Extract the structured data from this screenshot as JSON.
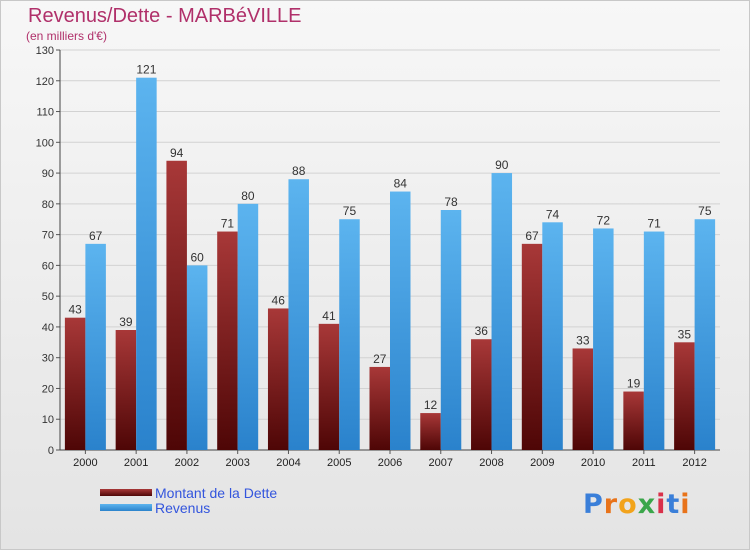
{
  "chart_data": {
    "type": "bar",
    "title": "Revenus/Dette - MARBéVILLE",
    "subtitle": "(en milliers d'€)",
    "categories": [
      "2000",
      "2001",
      "2002",
      "2003",
      "2004",
      "2005",
      "2006",
      "2007",
      "2008",
      "2009",
      "2010",
      "2011",
      "2012"
    ],
    "series": [
      {
        "name": "Montant de la Dette",
        "color": "#7a1a1a",
        "values": [
          43,
          39,
          94,
          71,
          46,
          41,
          27,
          12,
          36,
          67,
          33,
          19,
          35
        ]
      },
      {
        "name": "Revenus",
        "color": "#3d9be0",
        "values": [
          67,
          121,
          60,
          80,
          88,
          75,
          84,
          78,
          90,
          74,
          72,
          71,
          75
        ]
      }
    ],
    "ylim": [
      0,
      130
    ],
    "yticks": [
      0,
      10,
      20,
      30,
      40,
      50,
      60,
      70,
      80,
      90,
      100,
      110,
      120,
      130
    ],
    "grid": true,
    "legend_position": "bottom-left",
    "data_labels": true
  },
  "logo": {
    "letters": [
      {
        "char": "P",
        "color": "#3a7fd9"
      },
      {
        "char": "r",
        "color": "#e8731a"
      },
      {
        "char": "o",
        "color": "#f2a31b"
      },
      {
        "char": "x",
        "color": "#3aa64a"
      },
      {
        "char": "i",
        "color": "#d9304a"
      },
      {
        "char": "t",
        "color": "#3a7fd9"
      },
      {
        "char": "i",
        "color": "#e8731a"
      }
    ]
  }
}
